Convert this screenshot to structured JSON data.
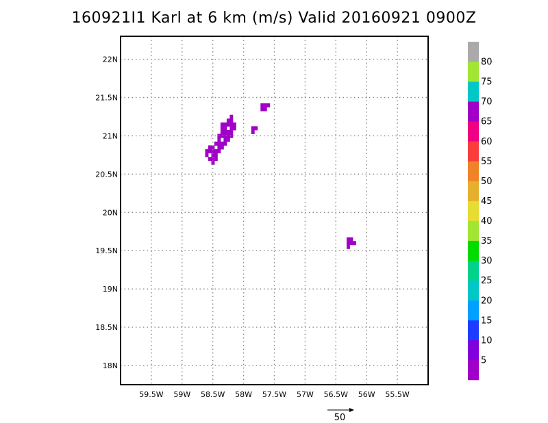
{
  "chart_data": {
    "type": "heatmap",
    "title": "160921I1 Karl at 6 km (m/s) Valid 20160921  0900Z",
    "xlim": [
      -60.0,
      -55.0
    ],
    "ylim": [
      17.75,
      22.3
    ],
    "x_ticks": [
      {
        "value": -59.5,
        "label": "59.5W"
      },
      {
        "value": -59.0,
        "label": "59W"
      },
      {
        "value": -58.5,
        "label": "58.5W"
      },
      {
        "value": -58.0,
        "label": "58W"
      },
      {
        "value": -57.5,
        "label": "57.5W"
      },
      {
        "value": -57.0,
        "label": "57W"
      },
      {
        "value": -56.5,
        "label": "56.5W"
      },
      {
        "value": -56.0,
        "label": "56W"
      },
      {
        "value": -55.5,
        "label": "55.5W"
      }
    ],
    "y_ticks": [
      {
        "value": 18.0,
        "label": "18N"
      },
      {
        "value": 18.5,
        "label": "18.5N"
      },
      {
        "value": 19.0,
        "label": "19N"
      },
      {
        "value": 19.5,
        "label": "19.5N"
      },
      {
        "value": 20.0,
        "label": "20N"
      },
      {
        "value": 20.5,
        "label": "20.5N"
      },
      {
        "value": 21.0,
        "label": "21N"
      },
      {
        "value": 21.5,
        "label": "21.5N"
      },
      {
        "value": 22.0,
        "label": "22N"
      }
    ],
    "grid": true,
    "cell_size_deg": 0.05,
    "colorbar": {
      "levels": [
        5,
        10,
        15,
        20,
        25,
        30,
        35,
        40,
        45,
        50,
        55,
        60,
        65,
        70,
        75,
        80
      ],
      "labels": [
        "5",
        "10",
        "15",
        "20",
        "25",
        "30",
        "35",
        "40",
        "45",
        "50",
        "55",
        "60",
        "65",
        "70",
        "75",
        "80"
      ],
      "colors": [
        "#a000c8",
        "#8200dc",
        "#1e3cff",
        "#00a0ff",
        "#00c8c8",
        "#00d28c",
        "#00dc00",
        "#a0e632",
        "#e6dc32",
        "#e6af2d",
        "#f08228",
        "#fa3c3c",
        "#f00082",
        "#a000c8",
        "#00c8c8",
        "#a0e632",
        "#aaaaaa"
      ]
    },
    "cells_color": "#a000c8",
    "cells": [
      [
        -58.2,
        21.25
      ],
      [
        -58.25,
        21.2
      ],
      [
        -58.2,
        21.2
      ],
      [
        -58.35,
        21.15
      ],
      [
        -58.3,
        21.15
      ],
      [
        -58.25,
        21.15
      ],
      [
        -58.2,
        21.15
      ],
      [
        -58.15,
        21.15
      ],
      [
        -58.35,
        21.1
      ],
      [
        -58.3,
        21.1
      ],
      [
        -58.2,
        21.1
      ],
      [
        -58.15,
        21.1
      ],
      [
        -58.35,
        21.05
      ],
      [
        -58.3,
        21.05
      ],
      [
        -58.25,
        21.05
      ],
      [
        -58.2,
        21.05
      ],
      [
        -58.4,
        21.0
      ],
      [
        -58.35,
        21.0
      ],
      [
        -58.3,
        21.0
      ],
      [
        -58.25,
        21.0
      ],
      [
        -58.2,
        21.0
      ],
      [
        -58.4,
        20.95
      ],
      [
        -58.3,
        20.95
      ],
      [
        -58.25,
        20.95
      ],
      [
        -58.45,
        20.9
      ],
      [
        -58.4,
        20.9
      ],
      [
        -58.35,
        20.9
      ],
      [
        -58.3,
        20.9
      ],
      [
        -58.55,
        20.85
      ],
      [
        -58.5,
        20.85
      ],
      [
        -58.4,
        20.85
      ],
      [
        -58.35,
        20.85
      ],
      [
        -58.6,
        20.8
      ],
      [
        -58.55,
        20.8
      ],
      [
        -58.5,
        20.8
      ],
      [
        -58.45,
        20.8
      ],
      [
        -58.4,
        20.8
      ],
      [
        -58.6,
        20.75
      ],
      [
        -58.5,
        20.75
      ],
      [
        -58.45,
        20.75
      ],
      [
        -58.55,
        20.7
      ],
      [
        -58.5,
        20.7
      ],
      [
        -58.45,
        20.7
      ],
      [
        -58.5,
        20.65
      ],
      [
        -57.85,
        21.1
      ],
      [
        -57.8,
        21.1
      ],
      [
        -57.85,
        21.05
      ],
      [
        -57.7,
        21.4
      ],
      [
        -57.65,
        21.4
      ],
      [
        -57.6,
        21.4
      ],
      [
        -57.7,
        21.35
      ],
      [
        -57.65,
        21.35
      ],
      [
        -56.3,
        19.65
      ],
      [
        -56.25,
        19.65
      ],
      [
        -56.3,
        19.6
      ],
      [
        -56.25,
        19.6
      ],
      [
        -56.2,
        19.6
      ],
      [
        -56.3,
        19.55
      ]
    ],
    "reference_vector": {
      "label": "50"
    }
  }
}
